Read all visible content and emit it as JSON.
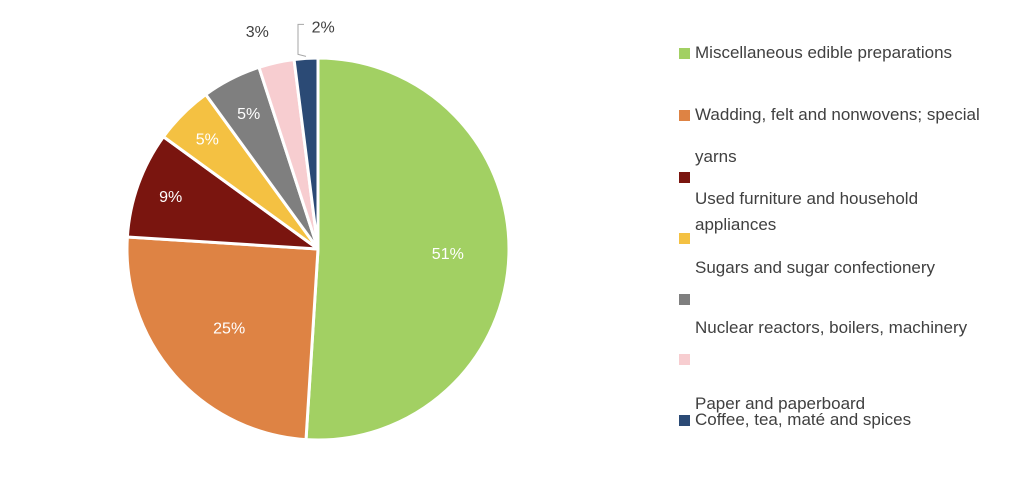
{
  "chart_data": {
    "type": "pie",
    "title": "",
    "slices": [
      {
        "label": "Miscellaneous edible preparations",
        "value": 51,
        "display": "51%",
        "color": "#A2D063"
      },
      {
        "label": "Wadding, felt and nonwovens; special yarns",
        "value": 25,
        "display": "25%",
        "color": "#DE8344"
      },
      {
        "label": "Used furniture and household appliances",
        "value": 9,
        "display": "9%",
        "color": "#7A150F"
      },
      {
        "label": "Sugars and sugar confectionery",
        "value": 5,
        "display": "5%",
        "color": "#F4C142"
      },
      {
        "label": "Nuclear reactors, boilers, machinery",
        "value": 5,
        "display": "5%",
        "color": "#7F7F7F"
      },
      {
        "label": "Paper and paperboard",
        "value": 3,
        "display": "3%",
        "color": "#F7CDD0"
      },
      {
        "label": "Coffee, tea, maté and spices",
        "value": 2,
        "display": "2%",
        "color": "#2B4A75"
      }
    ],
    "legend_position": "right"
  },
  "legend": {
    "items": [
      {
        "label": "Miscellaneous edible preparations",
        "color": "#A2D063"
      },
      {
        "label": "Wadding, felt and nonwovens; special yarns",
        "color": "#DE8344"
      },
      {
        "label": "Used furniture and household appliances",
        "color": "#7A150F"
      },
      {
        "label": "Sugars and sugar confectionery",
        "color": "#F4C142"
      },
      {
        "label": "Nuclear reactors, boilers, machinery",
        "color": "#7F7F7F"
      },
      {
        "label": "Paper and paperboard",
        "color": "#F7CDD0"
      },
      {
        "label": "Coffee, tea, maté and spices",
        "color": "#2B4A75"
      }
    ]
  }
}
